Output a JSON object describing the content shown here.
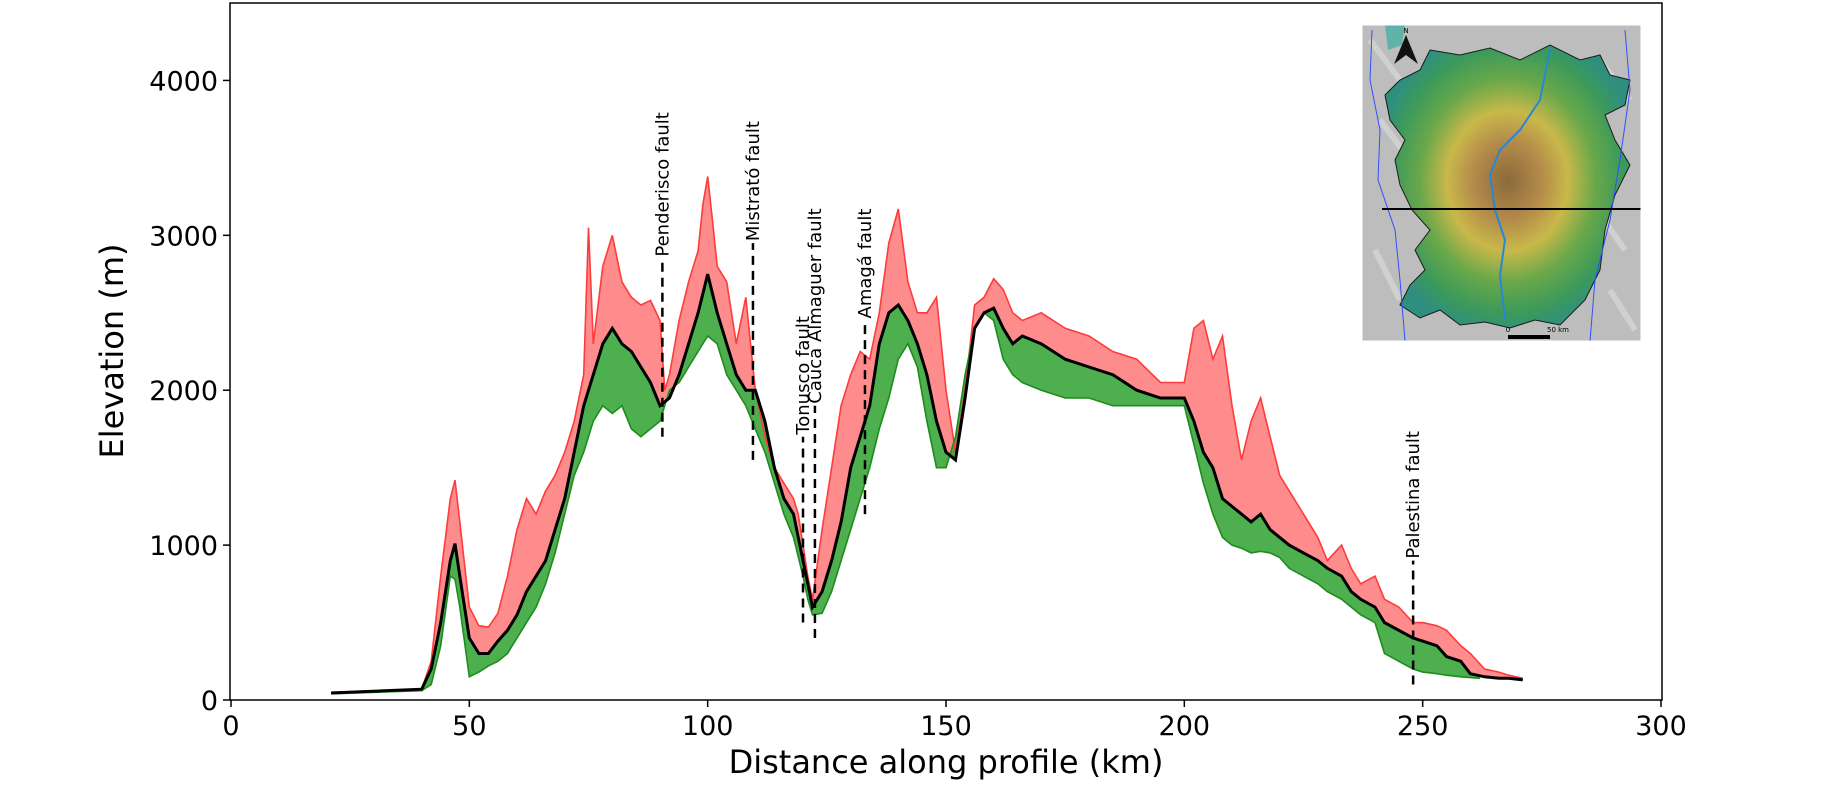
{
  "chart_data": {
    "type": "area",
    "title": "",
    "xlabel": "Distance along profile (km)",
    "ylabel": "Elevation (m)",
    "xlim": [
      0,
      300
    ],
    "ylim": [
      0,
      4500
    ],
    "xticks": [
      "0",
      "50",
      "100",
      "150",
      "200",
      "250",
      "300"
    ],
    "yticks": [
      "0",
      "1000",
      "2000",
      "3000",
      "4000"
    ],
    "grid": false,
    "colors": {
      "max": "#ff3b3b",
      "max_fill": "#ff8080",
      "min": "#1e8c1e",
      "min_fill": "#3aa63a",
      "mean": "#000000"
    },
    "series": [
      {
        "role": "max",
        "x": [
          21,
          40,
          42,
          44,
          46,
          47,
          48,
          50,
          52,
          54,
          56,
          58,
          60,
          62,
          64,
          66,
          68,
          70,
          72,
          74,
          75,
          76,
          78,
          80,
          82,
          84,
          86,
          88,
          90,
          91,
          92,
          94,
          96,
          98,
          99,
          100,
          101,
          102,
          104,
          106,
          108,
          110,
          112,
          114,
          116,
          118,
          119,
          120,
          121,
          122,
          124,
          126,
          128,
          130,
          132,
          134,
          136,
          138,
          140,
          142,
          144,
          146,
          148,
          150,
          152,
          154,
          156,
          158,
          160,
          162,
          164,
          166,
          170,
          175,
          180,
          185,
          190,
          195,
          200,
          202,
          204,
          206,
          208,
          210,
          212,
          214,
          216,
          218,
          220,
          222,
          225,
          228,
          230,
          233,
          235,
          237,
          240,
          242,
          245,
          248,
          250,
          253,
          255,
          258,
          260,
          263,
          266,
          268,
          271
        ],
        "y": [
          50,
          70,
          250,
          800,
          1300,
          1420,
          1150,
          600,
          480,
          470,
          560,
          800,
          1100,
          1300,
          1200,
          1350,
          1450,
          1600,
          1800,
          2100,
          3050,
          2300,
          2800,
          3000,
          2700,
          2600,
          2550,
          2580,
          2450,
          2000,
          2100,
          2450,
          2700,
          2900,
          3200,
          3380,
          3100,
          2800,
          2700,
          2300,
          2600,
          2000,
          1700,
          1500,
          1400,
          1300,
          1200,
          1000,
          800,
          650,
          1100,
          1500,
          1900,
          2100,
          2250,
          2200,
          2500,
          2950,
          3170,
          2700,
          2500,
          2500,
          2600,
          2000,
          1600,
          2000,
          2550,
          2600,
          2720,
          2650,
          2500,
          2450,
          2500,
          2400,
          2350,
          2250,
          2200,
          2050,
          2050,
          2400,
          2450,
          2200,
          2350,
          1900,
          1550,
          1800,
          1950,
          1700,
          1450,
          1350,
          1200,
          1050,
          900,
          1000,
          850,
          750,
          800,
          650,
          600,
          500,
          500,
          480,
          450,
          350,
          300,
          200,
          180,
          160,
          140
        ]
      },
      {
        "role": "min",
        "x": [
          21,
          40,
          42,
          44,
          46,
          47,
          48,
          50,
          52,
          54,
          56,
          58,
          60,
          62,
          64,
          66,
          68,
          70,
          72,
          74,
          76,
          78,
          80,
          82,
          84,
          86,
          88,
          90,
          92,
          94,
          96,
          98,
          100,
          102,
          104,
          106,
          108,
          110,
          112,
          114,
          116,
          118,
          120,
          121,
          122,
          124,
          126,
          128,
          130,
          132,
          134,
          136,
          138,
          140,
          142,
          144,
          146,
          148,
          150,
          152,
          154,
          156,
          158,
          160,
          162,
          164,
          166,
          170,
          175,
          180,
          185,
          190,
          195,
          200,
          202,
          204,
          206,
          208,
          210,
          212,
          214,
          216,
          218,
          220,
          222,
          225,
          228,
          230,
          233,
          235,
          237,
          240,
          242,
          245,
          248,
          250,
          253,
          255,
          258,
          262
        ],
        "y": [
          40,
          60,
          100,
          350,
          800,
          780,
          600,
          150,
          180,
          220,
          250,
          300,
          400,
          500,
          600,
          750,
          950,
          1200,
          1450,
          1600,
          1800,
          1900,
          1850,
          1900,
          1750,
          1700,
          1750,
          1800,
          2000,
          2050,
          2150,
          2250,
          2350,
          2300,
          2100,
          2000,
          1900,
          1750,
          1600,
          1400,
          1200,
          1050,
          800,
          650,
          550,
          560,
          700,
          900,
          1100,
          1300,
          1500,
          1750,
          1950,
          2200,
          2300,
          2150,
          1800,
          1500,
          1500,
          1700,
          2100,
          2400,
          2500,
          2450,
          2200,
          2100,
          2050,
          2000,
          1950,
          1950,
          1900,
          1900,
          1900,
          1900,
          1650,
          1400,
          1200,
          1050,
          1000,
          980,
          950,
          960,
          950,
          920,
          850,
          800,
          750,
          700,
          650,
          600,
          550,
          500,
          300,
          250,
          200,
          180,
          170,
          160,
          150,
          140
        ]
      },
      {
        "role": "mean",
        "x": [
          21,
          40,
          42,
          44,
          46,
          47,
          48,
          50,
          52,
          54,
          56,
          58,
          60,
          62,
          64,
          66,
          68,
          70,
          72,
          74,
          76,
          78,
          80,
          82,
          84,
          86,
          88,
          90,
          92,
          94,
          96,
          98,
          100,
          102,
          104,
          106,
          108,
          110,
          112,
          114,
          116,
          118,
          120,
          121,
          122,
          124,
          126,
          128,
          130,
          132,
          134,
          136,
          138,
          140,
          142,
          144,
          146,
          148,
          150,
          152,
          154,
          156,
          158,
          160,
          162,
          164,
          166,
          170,
          175,
          180,
          185,
          190,
          195,
          200,
          202,
          204,
          206,
          208,
          210,
          212,
          214,
          216,
          218,
          220,
          222,
          225,
          228,
          230,
          233,
          235,
          237,
          240,
          242,
          245,
          248,
          250,
          253,
          255,
          258,
          260,
          263,
          266,
          268,
          271
        ],
        "y": [
          45,
          70,
          200,
          500,
          900,
          1010,
          800,
          400,
          300,
          300,
          380,
          450,
          550,
          700,
          800,
          900,
          1100,
          1300,
          1600,
          1900,
          2100,
          2300,
          2400,
          2300,
          2250,
          2150,
          2050,
          1900,
          1950,
          2100,
          2300,
          2500,
          2750,
          2500,
          2300,
          2100,
          2000,
          2000,
          1800,
          1500,
          1300,
          1200,
          900,
          750,
          600,
          700,
          900,
          1150,
          1500,
          1700,
          1900,
          2300,
          2500,
          2550,
          2450,
          2300,
          2100,
          1800,
          1600,
          1550,
          1950,
          2400,
          2500,
          2530,
          2400,
          2300,
          2350,
          2300,
          2200,
          2150,
          2100,
          2000,
          1950,
          1950,
          1800,
          1600,
          1500,
          1300,
          1250,
          1200,
          1150,
          1200,
          1100,
          1050,
          1000,
          950,
          900,
          850,
          800,
          700,
          650,
          600,
          500,
          450,
          400,
          380,
          350,
          280,
          250,
          170,
          150,
          140,
          140,
          130
        ]
      }
    ],
    "annotations": [
      {
        "label": "Penderisco fault",
        "x": 90.5,
        "y_bottom": 1700,
        "y_top": 2850
      },
      {
        "label": "Mistrató fault",
        "x": 109.5,
        "y_bottom": 1550,
        "y_top": 2950
      },
      {
        "label": "Tonusco fault",
        "x": 120,
        "y_bottom": 500,
        "y_top": 1700
      },
      {
        "label": "Cauca Almaguer fault",
        "x": 122.5,
        "y_bottom": 400,
        "y_top": 1900
      },
      {
        "label": "Amagá fault",
        "x": 133,
        "y_bottom": 1200,
        "y_top": 2450
      },
      {
        "label": "Palestina fault",
        "x": 248,
        "y_bottom": 100,
        "y_top": 900
      }
    ],
    "inset_map": {
      "north_label": "N",
      "scale_labels": [
        "0",
        "50 km"
      ]
    }
  }
}
